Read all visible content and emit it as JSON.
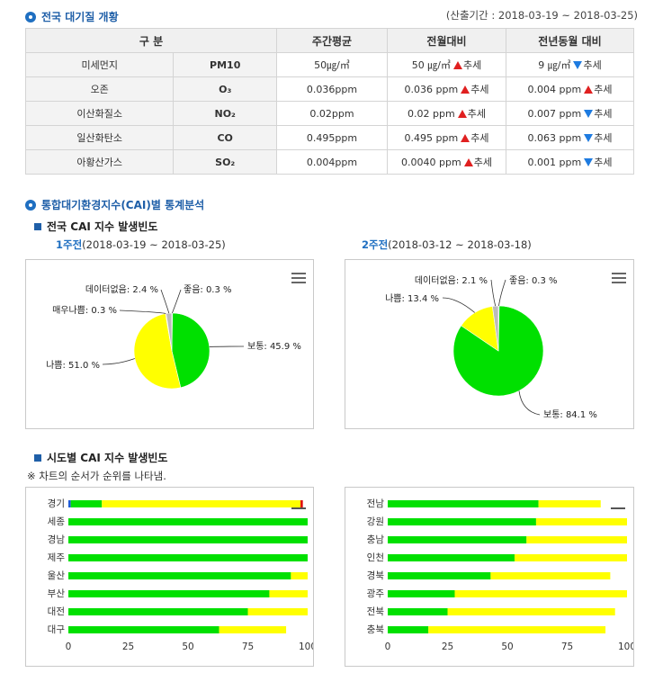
{
  "overview": {
    "title": "전국 대기질 개황",
    "period": "(산출기간 : 2018-03-19 ~ 2018-03-25)",
    "headers": [
      "구 분",
      "주간평균",
      "전월대비",
      "전년동월 대비"
    ],
    "rows": [
      {
        "name": "미세먼지",
        "code": "PM10",
        "avg": "50㎍/㎥",
        "mom_value": "50 ㎍/㎥",
        "mom_dir": "up",
        "yoy_value": "9 ㎍/㎥",
        "yoy_dir": "down"
      },
      {
        "name": "오존",
        "code": "O₃",
        "avg": "0.036ppm",
        "mom_value": "0.036 ppm",
        "mom_dir": "up",
        "yoy_value": "0.004 ppm",
        "yoy_dir": "up"
      },
      {
        "name": "이산화질소",
        "code": "NO₂",
        "avg": "0.02ppm",
        "mom_value": "0.02 ppm",
        "mom_dir": "up",
        "yoy_value": "0.007 ppm",
        "yoy_dir": "down"
      },
      {
        "name": "일산화탄소",
        "code": "CO",
        "avg": "0.495ppm",
        "mom_value": "0.495 ppm",
        "mom_dir": "up",
        "yoy_value": "0.063 ppm",
        "yoy_dir": "down"
      },
      {
        "name": "아황산가스",
        "code": "SO₂",
        "avg": "0.004ppm",
        "mom_value": "0.0040 ppm",
        "mom_dir": "up",
        "yoy_value": "0.001 ppm",
        "yoy_dir": "down"
      }
    ],
    "trend_label": "추세"
  },
  "cai": {
    "title": "통합대기환경지수(CAI)별 통계분석",
    "national_title": "전국 CAI 지수 발생빈도",
    "regional_title": "시도별 CAI 지수 발생빈도",
    "note": "※ 차트의 순서가 순위를 나타냄.",
    "week1": {
      "bold": "1주전",
      "range": "(2018-03-19 ~ 2018-03-25)"
    },
    "week2": {
      "bold": "2주전",
      "range": "(2018-03-12 ~ 2018-03-18)"
    }
  },
  "colors": {
    "good": "#1e5bd6",
    "normal": "#00e000",
    "bad": "#ffff00",
    "very_bad": "#e01010",
    "no_data": "#bbbbbb",
    "accent": "#1f5fa8"
  },
  "chart_data": [
    {
      "type": "pie",
      "slices": [
        {
          "label": "좋음",
          "value": 0.3,
          "color": "#1e5bd6"
        },
        {
          "label": "보통",
          "value": 45.9,
          "color": "#00e000"
        },
        {
          "label": "나쁨",
          "value": 51.0,
          "color": "#ffff00"
        },
        {
          "label": "매우나쁨",
          "value": 0.3,
          "color": "#e01010"
        },
        {
          "label": "데이터없음",
          "value": 2.4,
          "color": "#bbbbbb"
        }
      ],
      "labels_text": [
        "데이터없음: 2.4 %",
        "좋음: 0.3 %",
        "매우나쁨: 0.3 %",
        "보통: 45.9 %",
        "나쁨: 51.0 %"
      ]
    },
    {
      "type": "pie",
      "slices": [
        {
          "label": "좋음",
          "value": 0.3,
          "color": "#1e5bd6"
        },
        {
          "label": "보통",
          "value": 84.1,
          "color": "#00e000"
        },
        {
          "label": "나쁨",
          "value": 13.4,
          "color": "#ffff00"
        },
        {
          "label": "데이터없음",
          "value": 2.1,
          "color": "#bbbbbb"
        }
      ],
      "labels_text": [
        "데이터없음: 2.1 %",
        "좋음: 0.3 %",
        "나쁨: 13.4 %",
        "보통: 84.1 %"
      ]
    },
    {
      "type": "bar",
      "orientation": "horizontal",
      "stacked": true,
      "categories": [
        "경기",
        "세종",
        "경남",
        "제주",
        "울산",
        "부산",
        "대전",
        "대구"
      ],
      "series": [
        {
          "name": "좋음",
          "color": "#1e5bd6",
          "values": [
            1,
            0,
            0,
            0,
            0,
            0,
            0,
            0
          ]
        },
        {
          "name": "보통",
          "color": "#00e000",
          "values": [
            13,
            100,
            100,
            100,
            93,
            84,
            75,
            63
          ]
        },
        {
          "name": "나쁨",
          "color": "#ffff00",
          "values": [
            83,
            0,
            0,
            0,
            7,
            16,
            25,
            28
          ]
        },
        {
          "name": "매우나쁨",
          "color": "#e01010",
          "values": [
            1,
            0,
            0,
            0,
            0,
            0,
            0,
            0
          ]
        }
      ],
      "xticks": [
        "0",
        "25",
        "50",
        "75",
        "100"
      ],
      "xlim": [
        0,
        100
      ]
    },
    {
      "type": "bar",
      "orientation": "horizontal",
      "stacked": true,
      "categories": [
        "전남",
        "강원",
        "충남",
        "인천",
        "경북",
        "광주",
        "전북",
        "충북"
      ],
      "series": [
        {
          "name": "보통",
          "color": "#00e000",
          "values": [
            63,
            62,
            58,
            53,
            43,
            28,
            25,
            17
          ]
        },
        {
          "name": "나쁨",
          "color": "#ffff00",
          "values": [
            26,
            38,
            42,
            47,
            50,
            72,
            70,
            74
          ]
        }
      ],
      "xticks": [
        "0",
        "25",
        "50",
        "75",
        "100"
      ],
      "xlim": [
        0,
        100
      ]
    }
  ]
}
